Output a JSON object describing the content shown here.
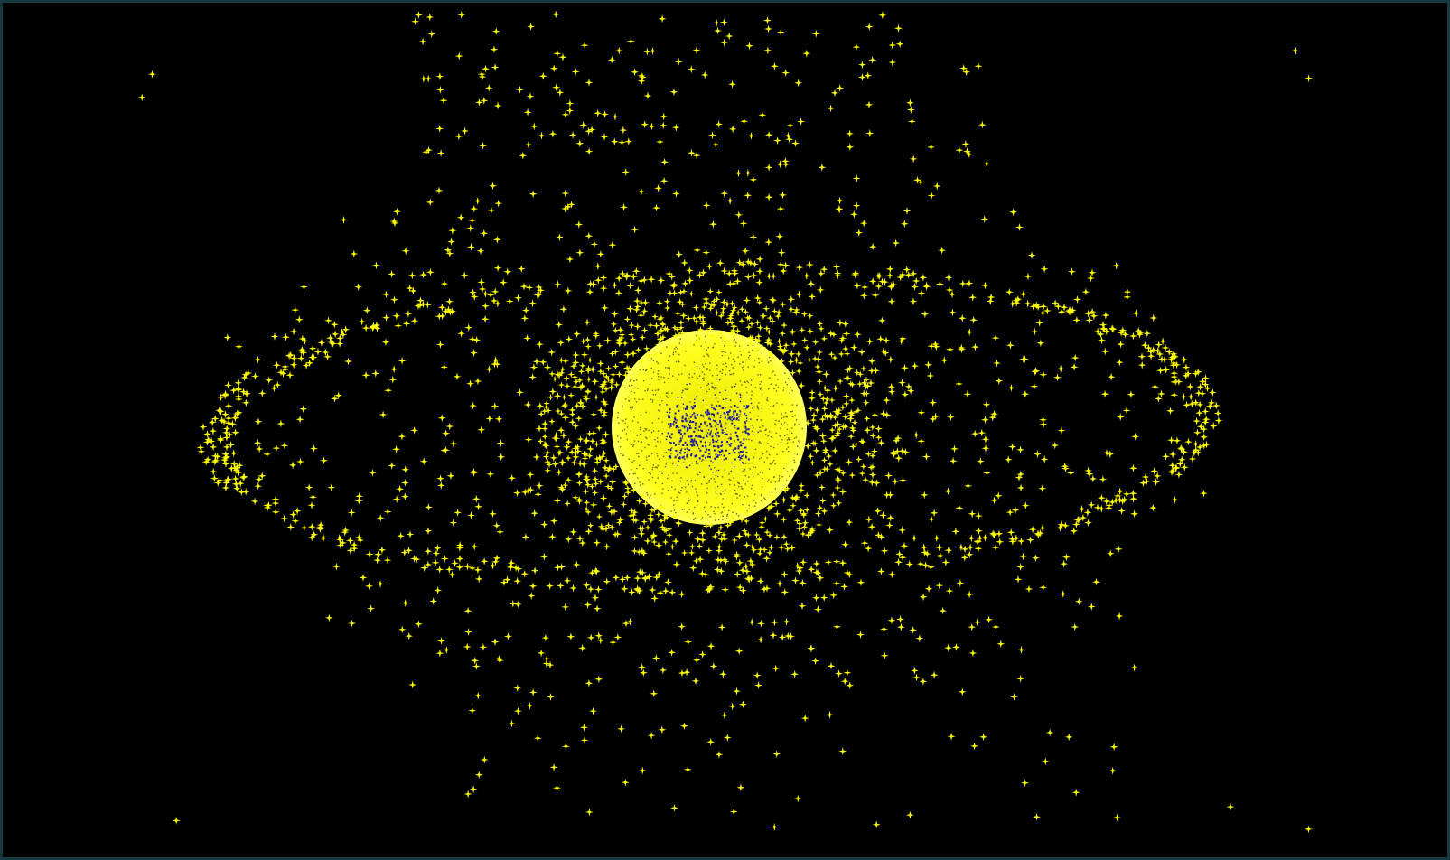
{
  "scene": {
    "subject": "debris-field-around-earth",
    "colors": {
      "background": "#000000",
      "frame": "#163a40",
      "debris": "#ffff00",
      "planet_ocean": "#1a1aa0",
      "planet_glow": "#ffff33"
    }
  }
}
